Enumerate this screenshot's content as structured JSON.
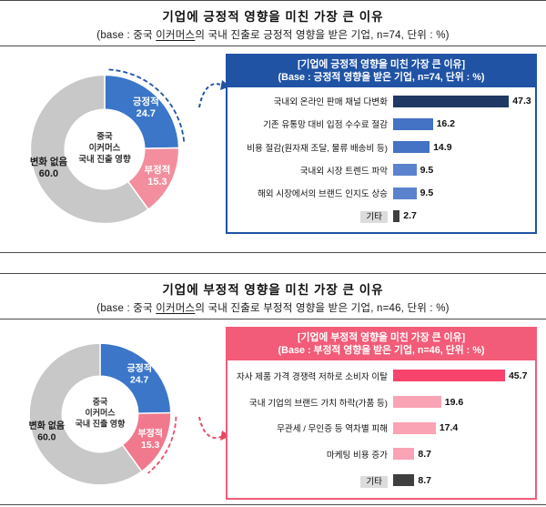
{
  "panels": [
    {
      "title": "기업에 긍정적 영향을 미친 가장 큰 이유",
      "subtitle_prefix": "(base : 중국 ",
      "subtitle_underlined": "이커머스",
      "subtitle_suffix": "의 국내 진출로 긍정적 영향을 받은 기업, n=74, 단위 : %)",
      "accent_color": "#2053A4",
      "arrow_color": "#2053A4"
    },
    {
      "title": "기업에 부정적 영향을 미친 가장 큰 이유",
      "subtitle_prefix": "(base : 중국 ",
      "subtitle_underlined": "이커머스",
      "subtitle_suffix": "의 국내 진출로 부정적 영향을 받은 기업, n=46, 단위 : %)",
      "accent_color": "#F25C78",
      "arrow_color": "#E8485E"
    }
  ],
  "chart_data": [
    {
      "type": "pie",
      "variant": "donut",
      "panel": "positive",
      "center_label": [
        "중국",
        "이커머스",
        "국내 진출 영향"
      ],
      "labels": [
        "긍정적",
        "부정적",
        "변화 없음"
      ],
      "values": [
        24.7,
        15.3,
        60.0
      ],
      "colors": [
        "#3B76C8",
        "#F28E9D",
        "#C8C8C8"
      ],
      "text_colors": [
        "#FFFFFF",
        "#FFFFFF",
        "#1A1A1A"
      ],
      "highlighted_index": 0,
      "highlight_color": "#2053A4"
    },
    {
      "type": "bar",
      "orientation": "horizontal",
      "title": "[기업에 긍정적 영향을 미친 가장 큰 이유]",
      "subtitle": "(Base : 긍정적 영향을 받은 기업, n=74, 단위 : %)",
      "header_bg": "#2053A4",
      "border_color": "#2053A4",
      "xlim": [
        0,
        55
      ],
      "categories": [
        "국내외 온라인 판매 채널 다변화",
        "기존 유통망 대비 입점 수수료 절감",
        "비용 절감(원자재 조달, 물류 배송비 등)",
        "국내외 시장 트렌드 파악",
        "해외 시장에서의 브랜드 인지도 상승",
        "기타"
      ],
      "values": [
        47.3,
        16.2,
        14.9,
        9.5,
        9.5,
        2.7
      ],
      "bar_colors": [
        "#1F3864",
        "#4472C4",
        "#4472C4",
        "#5B82CC",
        "#5B82CC",
        "#3F3F3F"
      ],
      "label_bg_colors": [
        "transparent",
        "transparent",
        "transparent",
        "transparent",
        "transparent",
        "#DCDCDC"
      ]
    },
    {
      "type": "pie",
      "variant": "donut",
      "panel": "negative",
      "center_label": [
        "중국",
        "이커머스",
        "국내 진출 영향"
      ],
      "labels": [
        "긍정적",
        "부정적",
        "변화 없음"
      ],
      "values": [
        24.7,
        15.3,
        60.0
      ],
      "colors": [
        "#3B76C8",
        "#F0798D",
        "#C8C8C8"
      ],
      "text_colors": [
        "#FFFFFF",
        "#FFFFFF",
        "#1A1A1A"
      ],
      "highlighted_index": 1,
      "highlight_color": "#E8485E"
    },
    {
      "type": "bar",
      "orientation": "horizontal",
      "title": "[기업에 부정적 영향을 미친 가장 큰 이유]",
      "subtitle": "(Base : 부정적 영향을 받은 기업, n=46, 단위 : %)",
      "header_bg": "#F25C78",
      "border_color": "#F25C78",
      "xlim": [
        0,
        55
      ],
      "categories": [
        "자사 제품 가격 경쟁력 저하로 소비자 이탈",
        "국내 기업의 브랜드 가치 하락(가품 등)",
        "무관세 / 무인증 등 역차별 피해",
        "마케팅 비용 증가",
        "기타"
      ],
      "values": [
        45.7,
        19.6,
        17.4,
        8.7,
        8.7
      ],
      "bar_colors": [
        "#F8436C",
        "#F9A3B4",
        "#F9A3B4",
        "#F9A3B4",
        "#3F3F3F"
      ],
      "label_bg_colors": [
        "transparent",
        "transparent",
        "transparent",
        "transparent",
        "#DCDCDC"
      ]
    }
  ]
}
